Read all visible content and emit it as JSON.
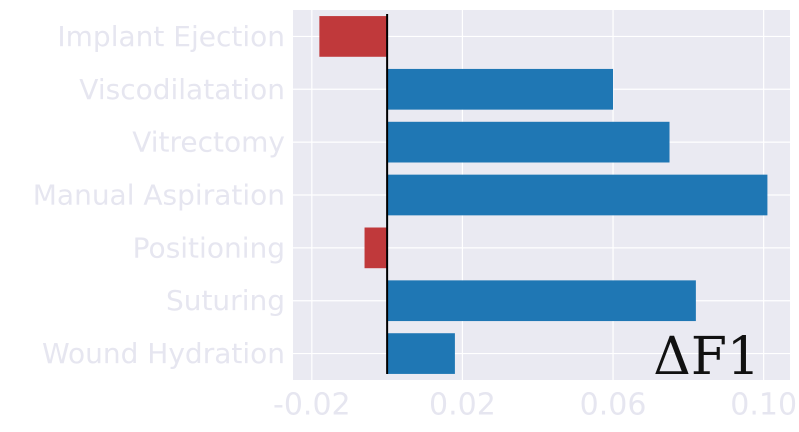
{
  "chart_data": {
    "type": "bar",
    "orientation": "horizontal",
    "categories": [
      "Implant Ejection",
      "Viscodilatation",
      "Vitrectomy",
      "Manual Aspiration",
      "Positioning",
      "Suturing",
      "Wound Hydration"
    ],
    "values": [
      -0.018,
      0.06,
      0.075,
      0.101,
      -0.006,
      0.082,
      0.018
    ],
    "xlim": [
      -0.025,
      0.107
    ],
    "xticks": [
      -0.02,
      0.02,
      0.06,
      0.1
    ],
    "xtick_labels": [
      "-0.02",
      "0.02",
      "0.06",
      "0.10"
    ],
    "annotation": "ΔF1",
    "grid": true,
    "colors": {
      "positive": "#1f77b4",
      "negative": "#c0393b",
      "plot_background": "#eaeaf2",
      "grid": "#ffffff",
      "zero_line": "#000000",
      "label_text": "#e6e6f0"
    }
  }
}
